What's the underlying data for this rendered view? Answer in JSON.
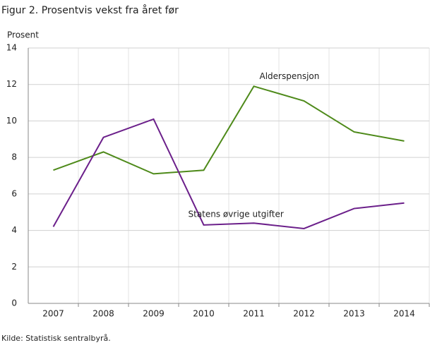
{
  "chart_data": {
    "type": "line",
    "title": "Figur 2. Prosentvis vekst fra året før",
    "y_label": "Prosent",
    "source": "Kilde: Statistisk sentralbyrå.",
    "categories": [
      "2007",
      "2008",
      "2009",
      "2010",
      "2011",
      "2012",
      "2013",
      "2014"
    ],
    "series": [
      {
        "name": "Alderspensjon",
        "color": "#4e8a1a",
        "values": [
          7.3,
          8.3,
          7.1,
          7.3,
          11.9,
          11.1,
          9.4,
          8.9
        ]
      },
      {
        "name": "Statens øvrige utgifter",
        "color": "#6b1f8a",
        "values": [
          4.2,
          9.1,
          10.1,
          4.3,
          4.4,
          4.1,
          5.2,
          5.5
        ]
      }
    ],
    "ylim": [
      0,
      14
    ],
    "yticks": [
      0,
      2,
      4,
      6,
      8,
      10,
      12,
      14
    ],
    "grid": true
  }
}
